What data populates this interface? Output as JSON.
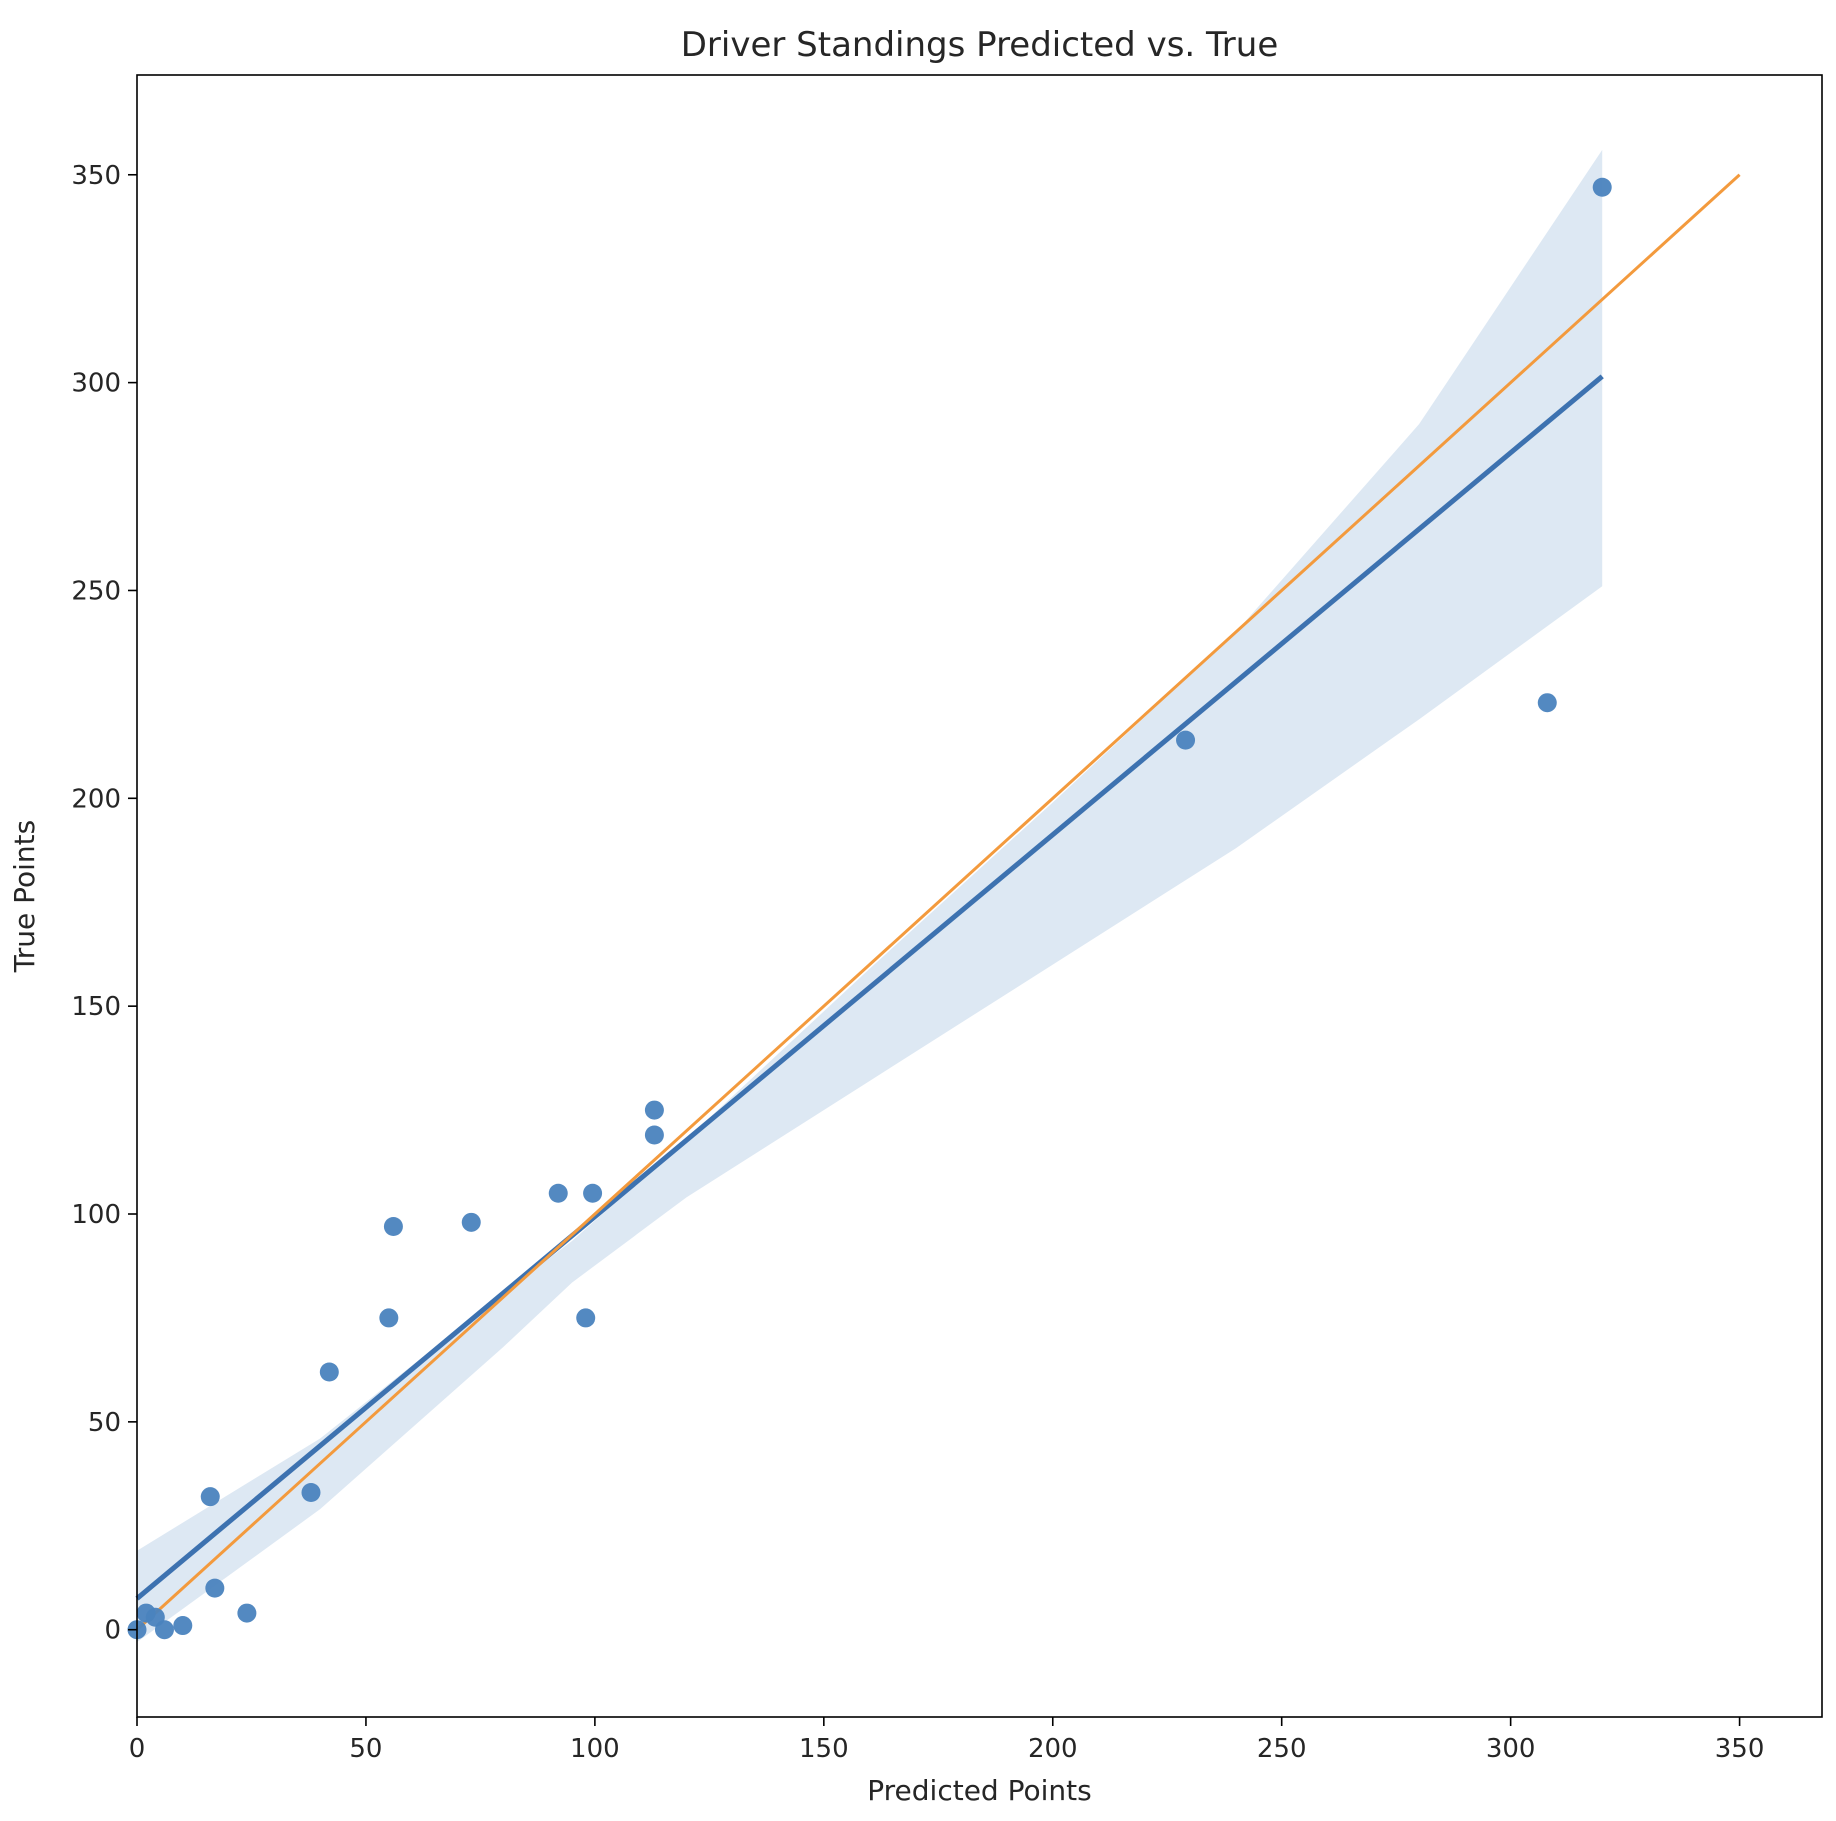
{
  "chart_data": {
    "type": "scatter",
    "title": "Driver Standings Predicted vs. True",
    "xlabel": "Predicted Points",
    "ylabel": "True Points",
    "xlim": [
      0,
      368
    ],
    "ylim": [
      -21,
      374
    ],
    "x_ticks": [
      0,
      50,
      100,
      150,
      200,
      250,
      300,
      350
    ],
    "y_ticks": [
      0,
      50,
      100,
      150,
      200,
      250,
      300,
      350
    ],
    "grid": false,
    "points": {
      "color": "#4a83be",
      "x": [
        0,
        2,
        4,
        6,
        10,
        16,
        17,
        24,
        38,
        42,
        55,
        56,
        73,
        92,
        98,
        99.5,
        113,
        113,
        229,
        308,
        320
      ],
      "y": [
        0,
        4,
        3,
        0,
        1,
        32,
        10,
        4,
        33,
        62,
        75,
        97,
        98,
        105,
        75,
        105,
        119,
        125,
        214,
        223,
        347
      ]
    },
    "regression_line": {
      "color": "#3d72b0",
      "x": [
        0,
        320
      ],
      "y": [
        7.5,
        301.5
      ]
    },
    "confidence_band": {
      "color": "#dde8f3",
      "x": [
        0,
        40,
        80,
        95,
        120,
        160,
        200,
        240,
        280,
        320
      ],
      "lower": [
        -3,
        29,
        68,
        83.5,
        104,
        132,
        160,
        188,
        219,
        251
      ],
      "upper": [
        19,
        46,
        81,
        93.5,
        118,
        159,
        199,
        240,
        290,
        356
      ]
    },
    "identity_line": {
      "color": "#f39a3d",
      "x": [
        0,
        350
      ],
      "y": [
        0,
        350
      ]
    }
  }
}
